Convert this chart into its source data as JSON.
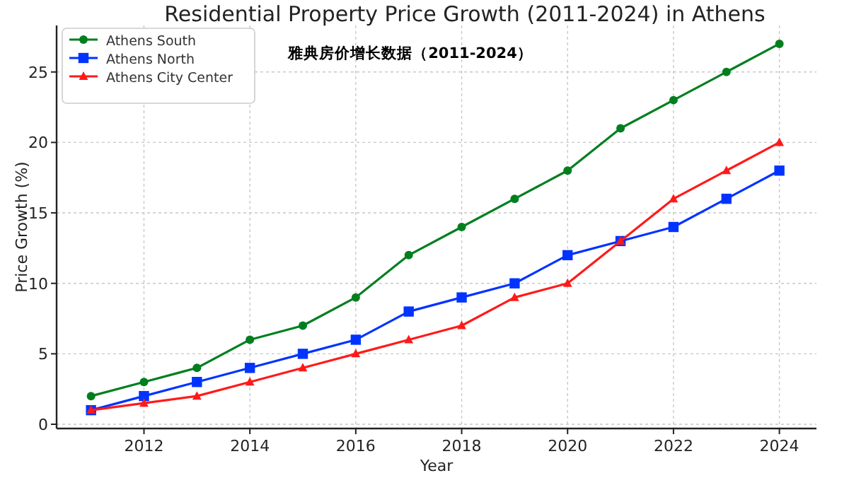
{
  "chart_data": {
    "type": "line",
    "title": "Residential Property Price Growth (2011-2024) in Athens",
    "xlabel": "Year",
    "ylabel": "Price Growth (%)",
    "annotations": [
      "雅典房价增长数据（2011-2024）"
    ],
    "x": [
      2011,
      2012,
      2013,
      2014,
      2015,
      2016,
      2017,
      2018,
      2019,
      2020,
      2021,
      2022,
      2023,
      2024
    ],
    "series": [
      {
        "name": "Athens South",
        "color": "#007f1f",
        "marker": "circle",
        "values": [
          2,
          3,
          4,
          6,
          7,
          9,
          12,
          14,
          16,
          18,
          21,
          23,
          25,
          27
        ]
      },
      {
        "name": "Athens North",
        "color": "#0033ff",
        "marker": "square",
        "values": [
          1,
          2,
          3,
          4,
          5,
          6,
          8,
          9,
          10,
          12,
          13,
          14,
          16,
          18
        ]
      },
      {
        "name": "Athens City Center",
        "color": "#ff1a1a",
        "marker": "triangle",
        "values": [
          1,
          1.5,
          2,
          3,
          4,
          5,
          6,
          7,
          9,
          10,
          13,
          16,
          18,
          20
        ]
      }
    ],
    "xlim": [
      2010.35,
      2024.7
    ],
    "ylim": [
      -0.3,
      28.3
    ],
    "xticks": [
      2012,
      2014,
      2016,
      2018,
      2020,
      2022,
      2024
    ],
    "yticks": [
      0,
      5,
      10,
      15,
      20,
      25
    ],
    "grid": true,
    "legend": "top left",
    "line_style": "solid"
  }
}
